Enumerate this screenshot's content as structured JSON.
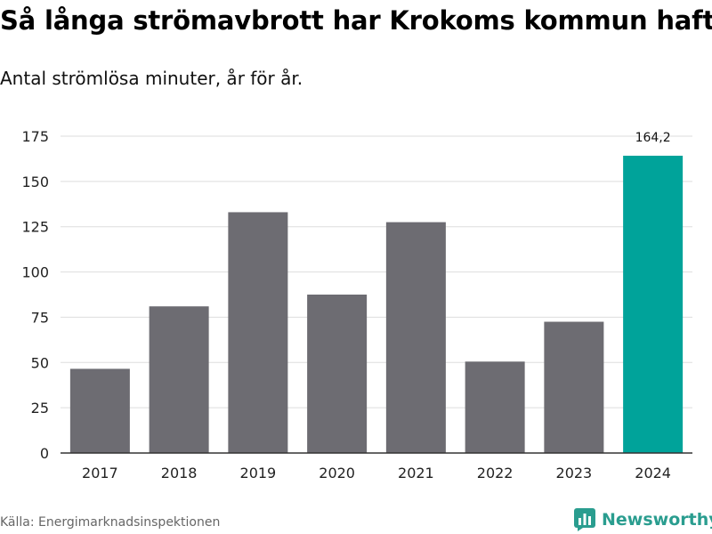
{
  "header": {
    "title": "Så långa strömavbrott har Krokoms kommun haft",
    "subtitle": "Antal strömlösa minuter, år för år."
  },
  "footer": {
    "source": "Källa: Energimarknadsinspektionen",
    "brand": "Newsworthy"
  },
  "chart_data": {
    "type": "bar",
    "title": "Så långa strömavbrott har Krokoms kommun haft",
    "subtitle": "Antal strömlösa minuter, år för år.",
    "categories": [
      "2017",
      "2018",
      "2019",
      "2020",
      "2021",
      "2022",
      "2023",
      "2024"
    ],
    "values": [
      46.5,
      81,
      133,
      87.5,
      127.5,
      50.5,
      72.5,
      164.2
    ],
    "data_labels": {
      "2024": "164,2"
    },
    "yticks": [
      0,
      25,
      50,
      75,
      100,
      125,
      150,
      175
    ],
    "ylim": [
      0,
      175
    ],
    "xlabel": "",
    "ylabel": "",
    "grid": "horizontal",
    "colors": {
      "default": "#6d6c72",
      "highlight": "#00a39a",
      "highlight_category": "2024",
      "grid": "#dddddd",
      "axis": "#333333"
    }
  }
}
